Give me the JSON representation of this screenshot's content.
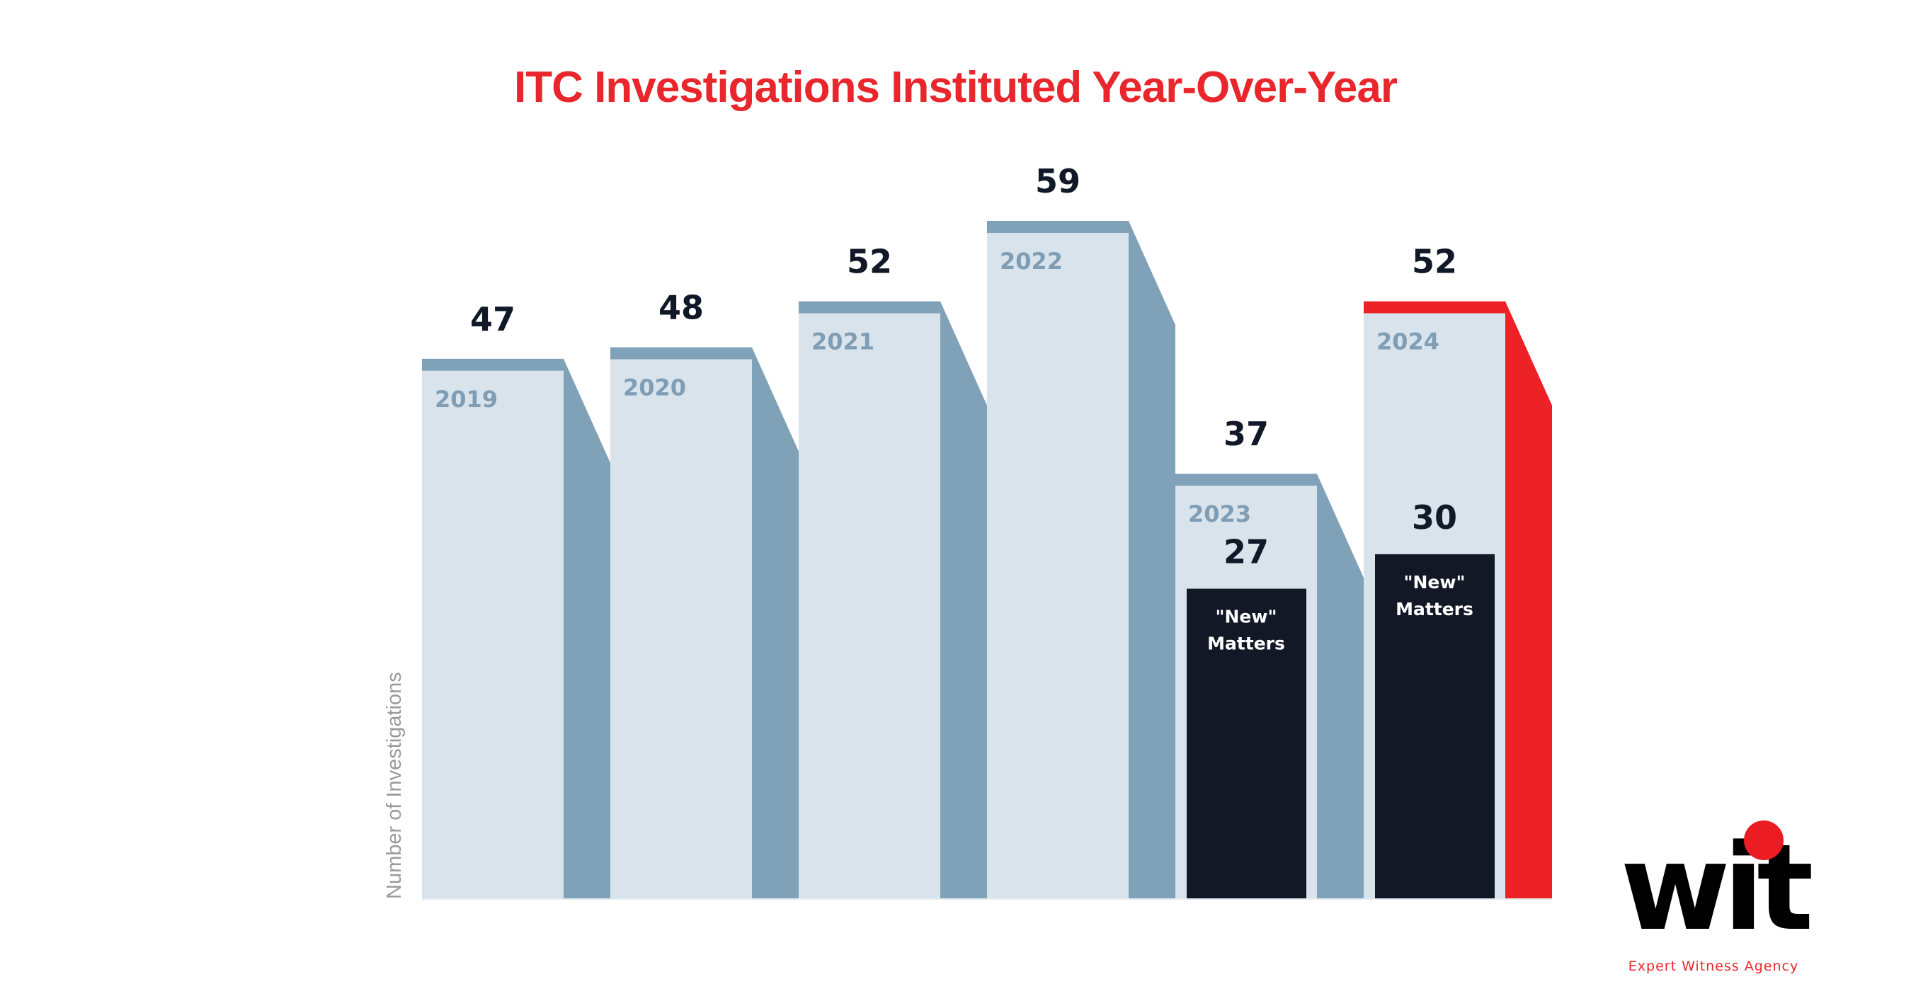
{
  "chart_data": {
    "type": "bar",
    "title": "ITC Investigations Instituted Year-Over-Year",
    "ylabel": "Number of Investigations",
    "xlabel": "",
    "categories": [
      "2019",
      "2020",
      "2021",
      "2022",
      "2023",
      "2024"
    ],
    "series": [
      {
        "values": [
          47,
          48,
          52,
          59,
          37,
          52
        ]
      },
      {
        "name": "\"New\" Matters",
        "values": [
          null,
          null,
          null,
          null,
          27,
          30
        ]
      }
    ],
    "new_label_line1": "\"New\"",
    "new_label_line2": "Matters",
    "highlight_category": "2024",
    "ylim": [
      0,
      59
    ],
    "grid": false,
    "colors": {
      "title": "#e8262b",
      "bar_face": "#d8e3ec",
      "bar_side": "#80a2b9",
      "highlight": "#ed2227",
      "new_matters": "#121826",
      "value_label": "#111827",
      "year_label": "#7f9db4",
      "axis_label": "#9a9a9a"
    }
  },
  "logo": {
    "wordmark": "wit",
    "tagline": "Expert Witness Agency",
    "dot_color": "#ec1c24"
  }
}
